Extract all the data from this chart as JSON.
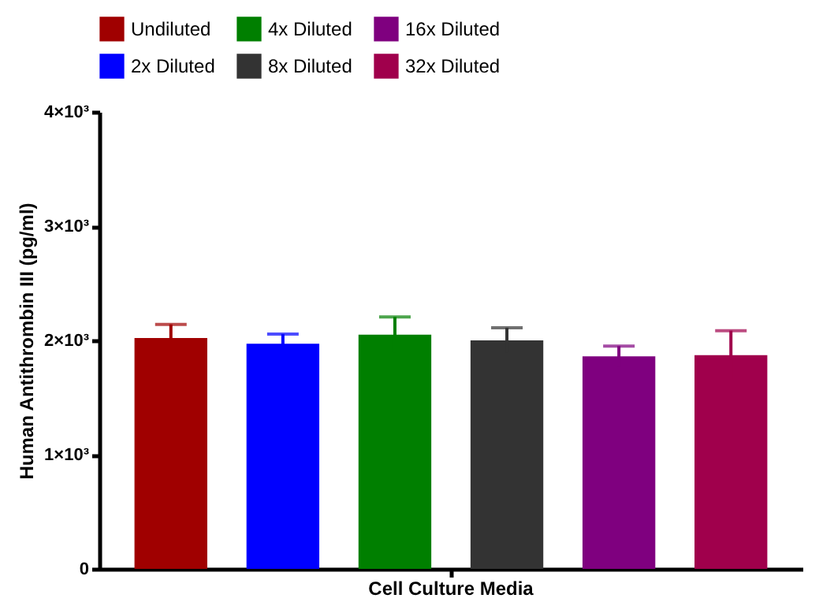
{
  "chart_data": {
    "type": "bar",
    "ylabel": "Human Antithrombin III (pg/ml)",
    "categories": [
      "Cell Culture Media"
    ],
    "series": [
      {
        "name": "Undiluted",
        "color": "#a00000",
        "values": [
          2020
        ],
        "errors": [
          120
        ]
      },
      {
        "name": "2x Diluted",
        "color": "#0000ff",
        "values": [
          1970
        ],
        "errors": [
          85
        ]
      },
      {
        "name": "4x Diluted",
        "color": "#007f00",
        "values": [
          2050
        ],
        "errors": [
          155
        ]
      },
      {
        "name": "8x Diluted",
        "color": "#333333",
        "values": [
          2000
        ],
        "errors": [
          110
        ]
      },
      {
        "name": "16x Diluted",
        "color": "#7f007f",
        "values": [
          1860
        ],
        "errors": [
          90
        ]
      },
      {
        "name": "32x Diluted",
        "color": "#a0004c",
        "values": [
          1870
        ],
        "errors": [
          215
        ]
      }
    ],
    "ylim": [
      0,
      4000
    ],
    "yticks": [
      0,
      {
        "value": 1000,
        "label": "1×10³"
      },
      {
        "value": 2000,
        "label": "2×10³"
      },
      {
        "value": 3000,
        "label": "3×10³"
      },
      {
        "value": 4000,
        "label": "4×10³"
      }
    ],
    "grid": false,
    "legend": "top"
  }
}
